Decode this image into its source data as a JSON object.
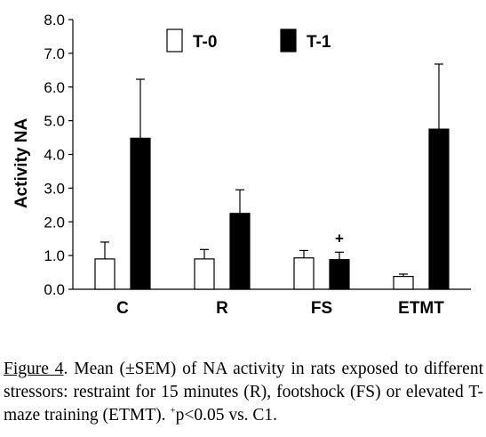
{
  "chart_data": {
    "type": "bar",
    "categories": [
      "C",
      "R",
      "FS",
      "ETMT"
    ],
    "series": [
      {
        "name": "T-0",
        "values": [
          0.9,
          0.9,
          0.93,
          0.38
        ],
        "errors": [
          0.5,
          0.28,
          0.22,
          0.07
        ],
        "fill": "#ffffff"
      },
      {
        "name": "T-1",
        "values": [
          4.48,
          2.25,
          0.88,
          4.75
        ],
        "errors": [
          1.75,
          0.7,
          0.22,
          1.93
        ],
        "fill": "#000000"
      }
    ],
    "ylabel": "Activity NA",
    "xlabel": "",
    "ylim": [
      0,
      8
    ],
    "yticks": [
      "0.0",
      "1.0",
      "2.0",
      "3.0",
      "4.0",
      "5.0",
      "6.0",
      "7.0",
      "8.0"
    ],
    "legend_position": "top",
    "annotations": [
      {
        "text": "+",
        "category": "FS",
        "series": "T-1"
      }
    ]
  },
  "caption": {
    "figure_ref": "Figure 4",
    "text": ". Mean (±SEM) of NA activity in rats exposed to different stressors: restraint for 15 minutes (R), footshock (FS) or elevated T-maze training (ETMT). ",
    "superscript": "+",
    "tail": "p<0.05 vs. C1."
  }
}
